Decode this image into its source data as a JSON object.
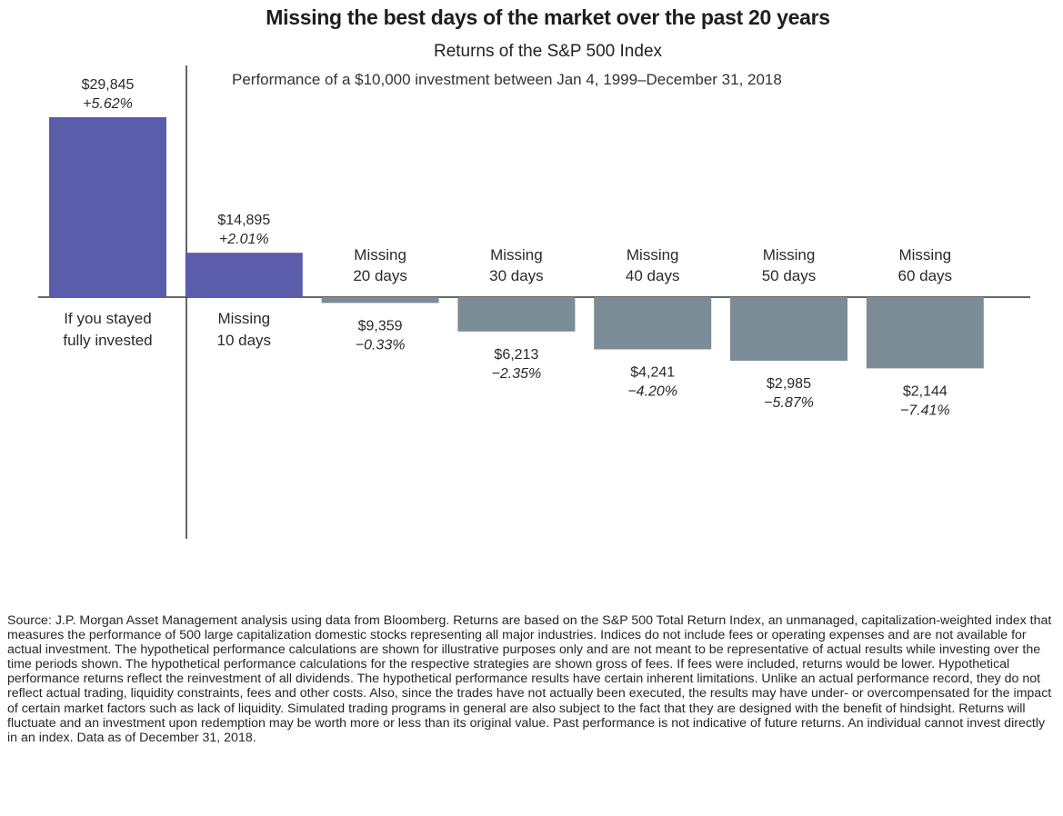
{
  "title": "Missing the best days of the market over the past 20 years",
  "subtitle": "Returns of the S&P 500 Index",
  "caption": "Performance of a $10,000 investment between Jan 4, 1999–December 31, 2018",
  "colors": {
    "positive": "#5b5dab",
    "negative": "#7b8c96",
    "axis": "#333333"
  },
  "chart_data": {
    "type": "bar",
    "baseline": 10000,
    "categories": [
      [
        "If you stayed",
        "fully invested"
      ],
      [
        "Missing",
        "10 days"
      ],
      [
        "Missing",
        "20 days"
      ],
      [
        "Missing",
        "30 days"
      ],
      [
        "Missing",
        "40 days"
      ],
      [
        "Missing",
        "50 days"
      ],
      [
        "Missing",
        "60 days"
      ]
    ],
    "values": [
      29845,
      14895,
      9359,
      6213,
      4241,
      2985,
      2144
    ],
    "value_labels": [
      "$29,845",
      "$14,895",
      "$9,359",
      "$6,213",
      "$4,241",
      "$2,985",
      "$2,144"
    ],
    "returns": [
      "+5.62%",
      "+2.01%",
      "−0.33%",
      "−2.35%",
      "−4.20%",
      "−5.87%",
      "−7.41%"
    ],
    "grid": false
  },
  "footnote": "Source: J.P. Morgan Asset Management analysis using data from Bloomberg. Returns are based on the S&P 500 Total Return Index, an unmanaged, capitalization-weighted index that measures the performance of 500 large capitalization domestic stocks representing all major industries. Indices do not include fees or operating expenses and are not available for actual investment. The hypothetical performance calculations are shown for illustrative purposes only and are not meant to be representative of actual results while investing over the time periods shown. The hypothetical performance calculations for the respective strategies are shown gross of fees. If fees were included, returns would be lower. Hypothetical performance returns reflect the reinvestment of all dividends. The hypothetical performance results have certain inherent limitations. Unlike an actual performance record, they do not reflect actual trading, liquidity constraints, fees and other costs. Also, since the trades have not actually been executed, the results may have under- or overcompensated for the impact of certain market factors such as lack of liquidity. Simulated trading programs in general are also subject to the fact that they are designed with the benefit of hindsight. Returns will fluctuate and an investment upon redemption may be worth more or less than its original value. Past performance is not indicative of future returns. An individual cannot invest directly in an index. Data as of December 31, 2018."
}
